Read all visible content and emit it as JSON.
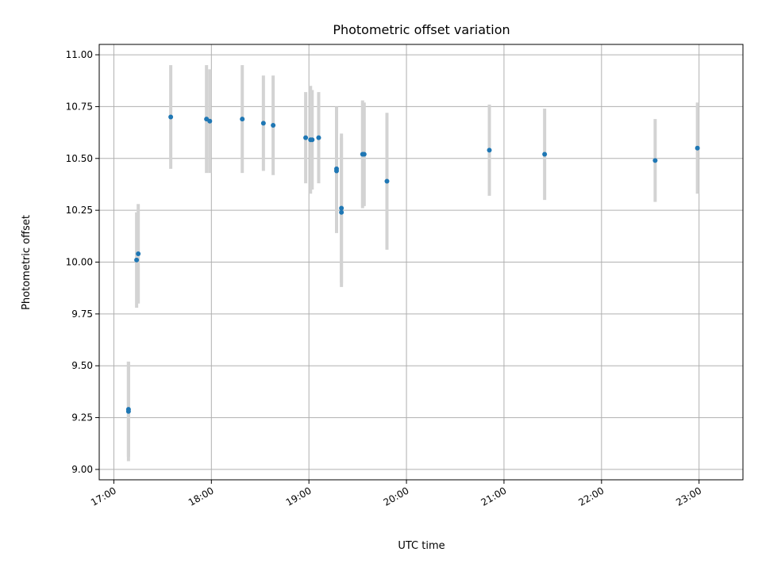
{
  "chart_data": {
    "type": "scatter",
    "title": "Photometric offset variation",
    "xlabel": "UTC time",
    "ylabel": "Photometric offset",
    "x_ticks": [
      "17:00",
      "18:00",
      "19:00",
      "20:00",
      "21:00",
      "22:00",
      "23:00"
    ],
    "y_ticks": [
      "9.00",
      "9.25",
      "9.50",
      "9.75",
      "10.00",
      "10.25",
      "10.50",
      "10.75",
      "11.00"
    ],
    "xlim": [
      "16:51",
      "23:27"
    ],
    "ylim": [
      8.95,
      11.05
    ],
    "grid": true,
    "colors": {
      "point": "#1f77b4",
      "errorbar": "#d3d3d3"
    },
    "series": [
      {
        "points": [
          {
            "x": "17:09",
            "y": 9.28,
            "err": 0.24
          },
          {
            "x": "17:09",
            "y": 9.29,
            "err": 0.23
          },
          {
            "x": "17:14",
            "y": 10.01,
            "err": 0.23
          },
          {
            "x": "17:15",
            "y": 10.04,
            "err": 0.24
          },
          {
            "x": "17:35",
            "y": 10.7,
            "err": 0.25
          },
          {
            "x": "17:57",
            "y": 10.69,
            "err": 0.26
          },
          {
            "x": "17:59",
            "y": 10.68,
            "err": 0.25
          },
          {
            "x": "18:19",
            "y": 10.69,
            "err": 0.26
          },
          {
            "x": "18:32",
            "y": 10.67,
            "err": 0.23
          },
          {
            "x": "18:38",
            "y": 10.66,
            "err": 0.24
          },
          {
            "x": "18:58",
            "y": 10.6,
            "err": 0.22
          },
          {
            "x": "19:01",
            "y": 10.59,
            "err": 0.26
          },
          {
            "x": "19:02",
            "y": 10.59,
            "err": 0.24
          },
          {
            "x": "19:06",
            "y": 10.6,
            "err": 0.22
          },
          {
            "x": "19:17",
            "y": 10.45,
            "err": 0.3
          },
          {
            "x": "19:17",
            "y": 10.44,
            "err": 0.3
          },
          {
            "x": "19:20",
            "y": 10.26,
            "err": 0.36
          },
          {
            "x": "19:20",
            "y": 10.24,
            "err": 0.36
          },
          {
            "x": "19:33",
            "y": 10.52,
            "err": 0.26
          },
          {
            "x": "19:34",
            "y": 10.52,
            "err": 0.25
          },
          {
            "x": "19:48",
            "y": 10.39,
            "err": 0.33
          },
          {
            "x": "20:51",
            "y": 10.54,
            "err": 0.22
          },
          {
            "x": "21:25",
            "y": 10.52,
            "err": 0.22
          },
          {
            "x": "22:33",
            "y": 10.49,
            "err": 0.2
          },
          {
            "x": "22:59",
            "y": 10.55,
            "err": 0.22
          }
        ]
      }
    ]
  }
}
